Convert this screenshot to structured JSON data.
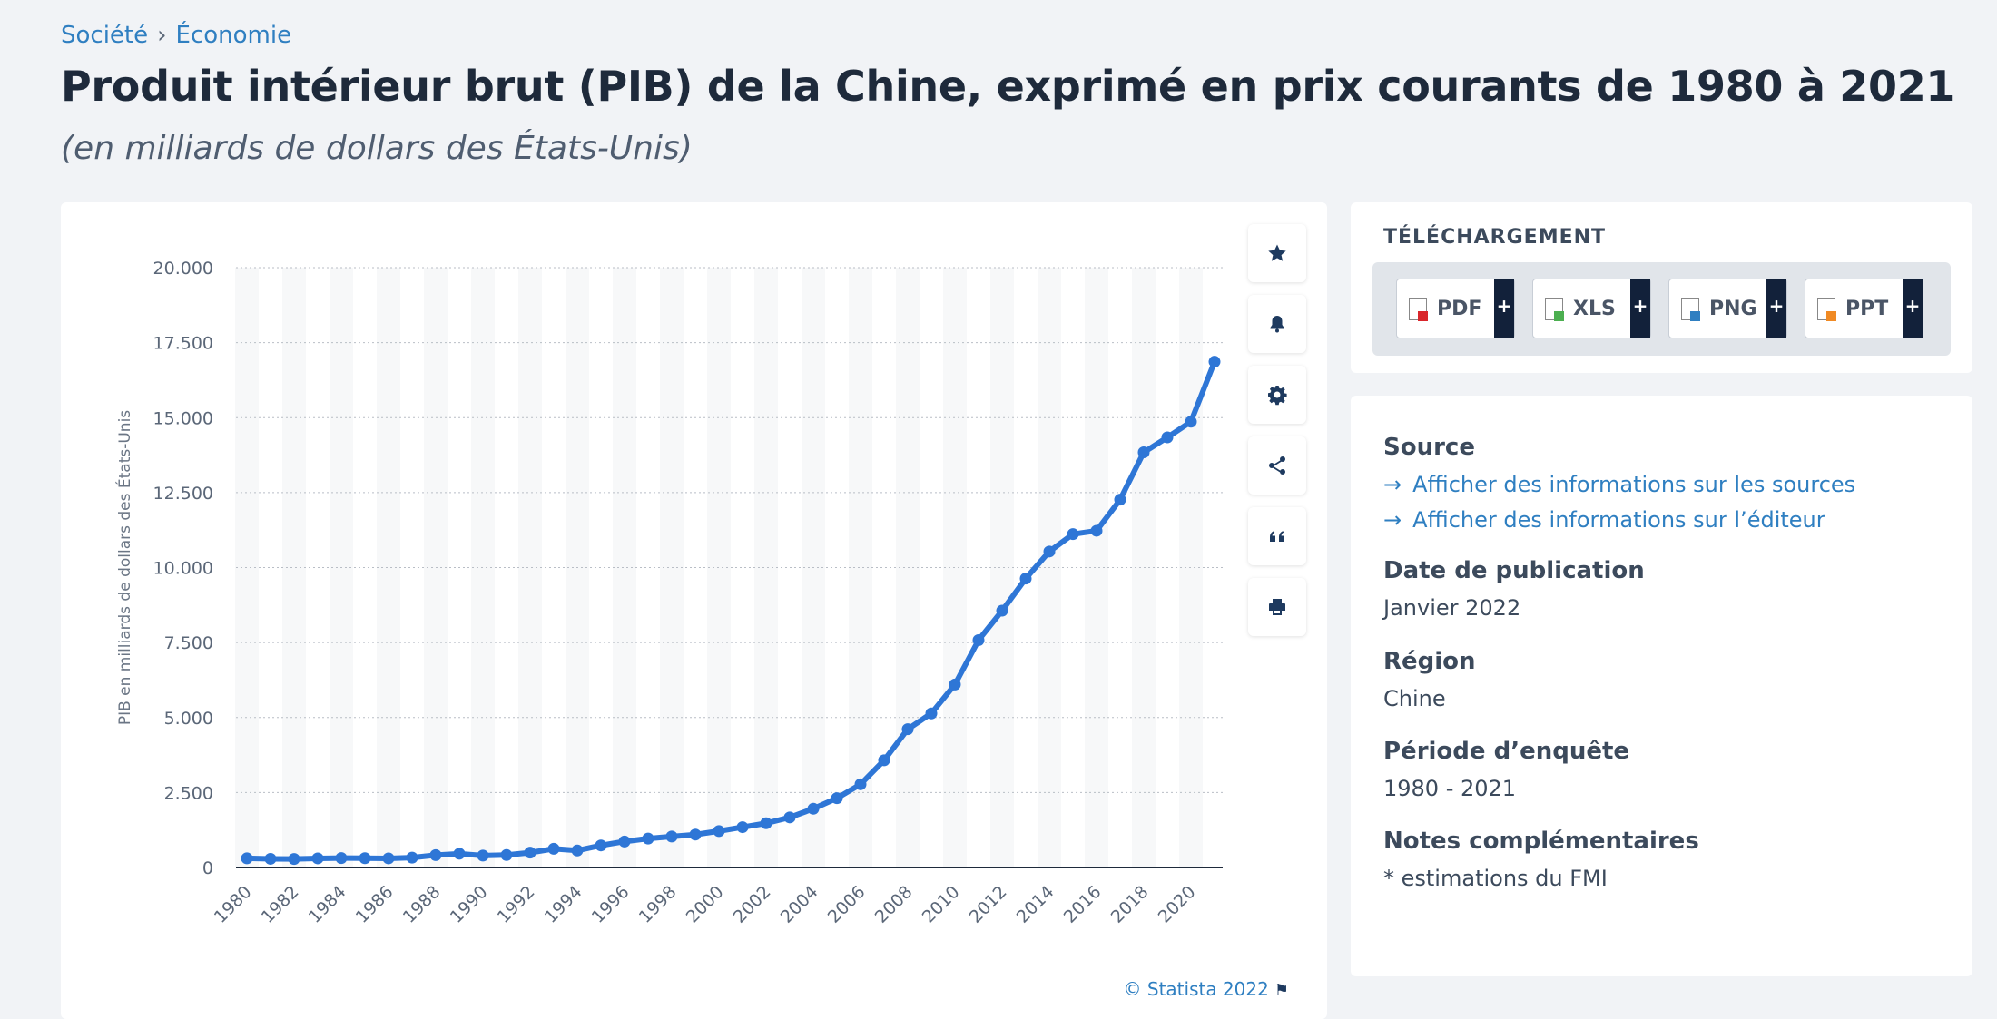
{
  "breadcrumb": {
    "item1": "Société",
    "separator": "›",
    "item2": "Économie"
  },
  "title": "Produit intérieur brut (PIB) de la Chine, exprimé en prix courants de 1980 à 2021",
  "subtitle": "(en milliards de dollars des États-Unis)",
  "copyright": "© Statista 2022",
  "toolbar": [
    "star-icon",
    "bell-icon",
    "gear-icon",
    "share-icon",
    "quote-icon",
    "print-icon"
  ],
  "download": {
    "title": "TÉLÉCHARGEMENT",
    "buttons": [
      {
        "label": "PDF",
        "icon": "pdf-file-icon",
        "color": "#d9262b"
      },
      {
        "label": "XLS",
        "icon": "xls-file-icon",
        "color": "#4caf50"
      },
      {
        "label": "PNG",
        "icon": "png-file-icon",
        "color": "#2f7fc1"
      },
      {
        "label": "PPT",
        "icon": "ppt-file-icon",
        "color": "#f08a24"
      }
    ],
    "plus": "+"
  },
  "info": {
    "source_heading": "Source",
    "source_link1": "Afficher des informations sur les sources",
    "source_link2": "Afficher des informations sur l’éditeur",
    "date_heading": "Date de publication",
    "date_value": "Janvier 2022",
    "region_heading": "Région",
    "region_value": "Chine",
    "period_heading": "Période d’enquête",
    "period_value": "1980 - 2021",
    "notes_heading": "Notes complémentaires",
    "notes_value": "* estimations du FMI"
  },
  "chart_data": {
    "type": "line",
    "ylabel": "PIB en milliards de dollars des États-Unis",
    "xlabel": "",
    "ylim": [
      0,
      20000
    ],
    "yticks": [
      0,
      2500,
      5000,
      7500,
      10000,
      12500,
      15000,
      17500,
      20000
    ],
    "ytick_labels": [
      "0",
      "2.500",
      "5.000",
      "7.500",
      "10.000",
      "12.500",
      "15.000",
      "17.500",
      "20.000"
    ],
    "xtick_labels": [
      "1980",
      "1982",
      "1984",
      "1986",
      "1988",
      "1990",
      "1992",
      "1994",
      "1996",
      "1998",
      "2000",
      "2002",
      "2004",
      "2006",
      "2008",
      "2010",
      "2012",
      "2014",
      "2016",
      "2018",
      "2020"
    ],
    "grid": true,
    "line_color": "#2e76d6",
    "x": [
      1980,
      1981,
      1982,
      1983,
      1984,
      1985,
      1986,
      1987,
      1988,
      1989,
      1990,
      1991,
      1992,
      1993,
      1994,
      1995,
      1996,
      1997,
      1998,
      1999,
      2000,
      2001,
      2002,
      2003,
      2004,
      2005,
      2006,
      2007,
      2008,
      2009,
      2010,
      2011,
      2012,
      2013,
      2014,
      2015,
      2016,
      2017,
      2018,
      2019,
      2020,
      2021
    ],
    "values": [
      305,
      289,
      283,
      304,
      314,
      310,
      304,
      329,
      413,
      459,
      398,
      415,
      495,
      623,
      566,
      735,
      867,
      965,
      1032,
      1097,
      1214,
      1344,
      1475,
      1669,
      1958,
      2310,
      2774,
      3574,
      4611,
      5137,
      6101,
      7579,
      8561,
      9634,
      10535,
      11114,
      11227,
      12265,
      13842,
      14341,
      14863,
      16863
    ]
  }
}
